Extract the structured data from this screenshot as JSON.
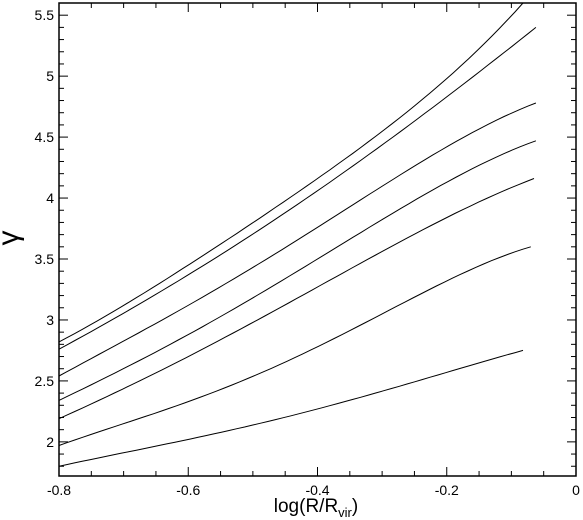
{
  "chart_data": {
    "type": "line",
    "xlabel": "log(R/R",
    "xlabel_sub": "vir",
    "xlabel_close": ")",
    "ylabel": "γ",
    "xlim": [
      -0.8,
      0.0
    ],
    "ylim": [
      1.72,
      5.6
    ],
    "x_ticks": [
      "-0.8",
      "-0.6",
      "-0.4",
      "-0.2",
      "0"
    ],
    "y_ticks": [
      "2",
      "2.5",
      "3",
      "3.5",
      "4",
      "4.5",
      "5",
      "5.5"
    ],
    "grid": false,
    "series": [
      {
        "x": [
          -0.8,
          -0.6,
          -0.4,
          -0.2,
          -0.082
        ],
        "values": [
          1.8,
          2.02,
          2.27,
          2.57,
          2.75
        ]
      },
      {
        "x": [
          -0.8,
          -0.6,
          -0.4,
          -0.2,
          -0.07
        ],
        "values": [
          1.97,
          2.33,
          2.78,
          3.32,
          3.6
        ]
      },
      {
        "x": [
          -0.8,
          -0.6,
          -0.4,
          -0.2,
          -0.065
        ],
        "values": [
          2.19,
          2.7,
          3.27,
          3.84,
          4.16
        ]
      },
      {
        "x": [
          -0.8,
          -0.6,
          -0.4,
          -0.2,
          -0.062
        ],
        "values": [
          2.34,
          2.88,
          3.5,
          4.13,
          4.47
        ]
      },
      {
        "x": [
          -0.8,
          -0.6,
          -0.4,
          -0.2,
          -0.062
        ],
        "values": [
          2.54,
          3.12,
          3.76,
          4.42,
          4.78
        ]
      },
      {
        "x": [
          -0.8,
          -0.6,
          -0.4,
          -0.2,
          -0.062
        ],
        "values": [
          2.76,
          3.37,
          4.06,
          4.83,
          5.4
        ]
      },
      {
        "x": [
          -0.8,
          -0.6,
          -0.4,
          -0.2,
          -0.082
        ],
        "values": [
          2.82,
          3.45,
          4.16,
          4.98,
          5.6
        ]
      }
    ]
  }
}
